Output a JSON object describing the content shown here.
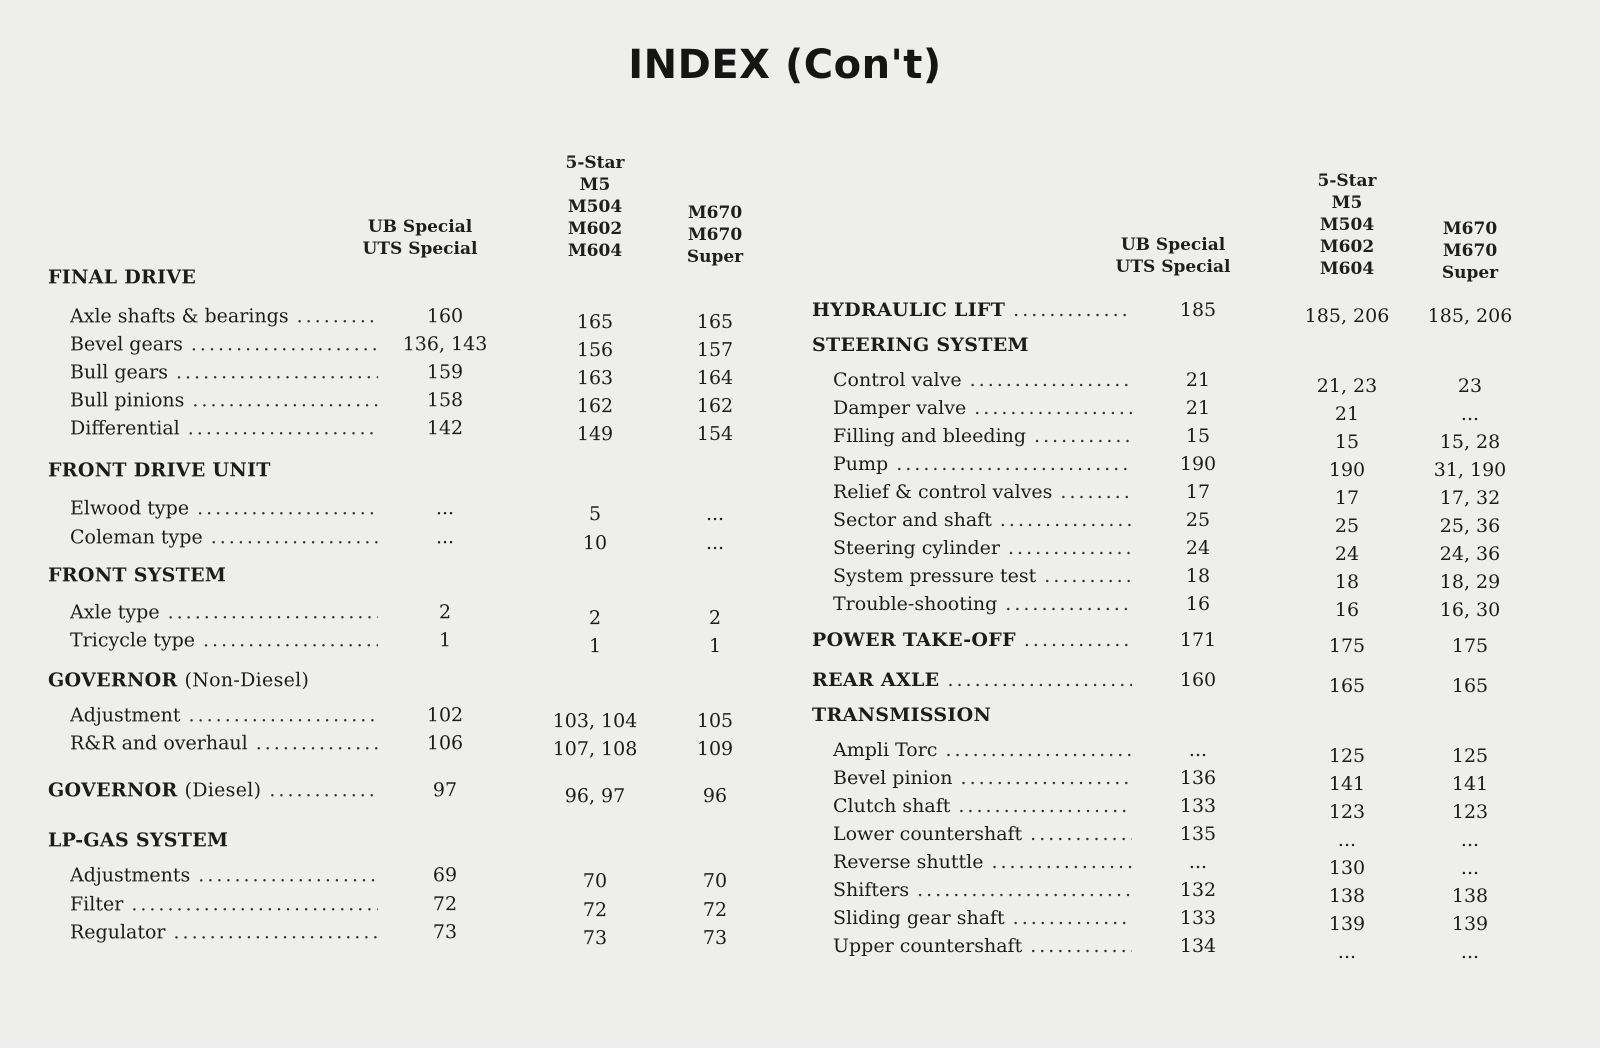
{
  "page_title": "INDEX",
  "page_title_suffix": "(Con't)",
  "columns": [
    [
      "UB Special",
      "UTS Special"
    ],
    [
      "5-Star",
      "M5",
      "M504",
      "M602",
      "M604"
    ],
    [
      "M670",
      "M670",
      "Super"
    ]
  ],
  "left": [
    {
      "type": "section",
      "title": "FINAL DRIVE"
    },
    {
      "type": "item",
      "label": "Axle shafts & bearings",
      "values": [
        "160",
        "165",
        "165"
      ]
    },
    {
      "type": "item",
      "label": "Bevel gears",
      "values": [
        "136, 143",
        "156",
        "157"
      ]
    },
    {
      "type": "item",
      "label": "Bull gears",
      "values": [
        "159",
        "163",
        "164"
      ]
    },
    {
      "type": "item",
      "label": "Bull pinions",
      "values": [
        "158",
        "162",
        "162"
      ]
    },
    {
      "type": "item",
      "label": "Differential",
      "values": [
        "142",
        "149",
        "154"
      ]
    },
    {
      "type": "section",
      "title": "FRONT DRIVE UNIT"
    },
    {
      "type": "item",
      "label": "Elwood type",
      "values": [
        "...",
        "5",
        "..."
      ]
    },
    {
      "type": "item",
      "label": "Coleman type",
      "values": [
        "...",
        "10",
        "..."
      ]
    },
    {
      "type": "section",
      "title": "FRONT SYSTEM"
    },
    {
      "type": "item",
      "label": "Axle type",
      "values": [
        "2",
        "2",
        "2"
      ]
    },
    {
      "type": "item",
      "label": "Tricycle type",
      "values": [
        "1",
        "1",
        "1"
      ]
    },
    {
      "type": "section",
      "title": "GOVERNOR",
      "subtitle": "(Non-Diesel)"
    },
    {
      "type": "item",
      "label": "Adjustment",
      "values": [
        "102",
        "103, 104",
        "105"
      ]
    },
    {
      "type": "item",
      "label": "R&R and overhaul",
      "values": [
        "106",
        "107, 108",
        "109"
      ]
    },
    {
      "type": "section",
      "title": "GOVERNOR",
      "subtitle": "(Diesel)",
      "values": [
        "97",
        "96, 97",
        "96"
      ]
    },
    {
      "type": "section",
      "title": "LP-GAS SYSTEM"
    },
    {
      "type": "item",
      "label": "Adjustments",
      "values": [
        "69",
        "70",
        "70"
      ]
    },
    {
      "type": "item",
      "label": "Filter",
      "values": [
        "72",
        "72",
        "72"
      ]
    },
    {
      "type": "item",
      "label": "Regulator",
      "values": [
        "73",
        "73",
        "73"
      ]
    }
  ],
  "right": [
    {
      "type": "section",
      "title": "HYDRAULIC LIFT",
      "values": [
        "185",
        "185, 206",
        "185, 206"
      ]
    },
    {
      "type": "section",
      "title": "STEERING SYSTEM"
    },
    {
      "type": "item",
      "label": "Control valve",
      "values": [
        "21",
        "21, 23",
        "23"
      ]
    },
    {
      "type": "item",
      "label": "Damper valve",
      "values": [
        "21",
        "21",
        "..."
      ]
    },
    {
      "type": "item",
      "label": "Filling and bleeding",
      "values": [
        "15",
        "15",
        "15, 28"
      ]
    },
    {
      "type": "item",
      "label": "Pump",
      "values": [
        "190",
        "190",
        "31, 190"
      ]
    },
    {
      "type": "item",
      "label": "Relief & control valves",
      "values": [
        "17",
        "17",
        "17, 32"
      ]
    },
    {
      "type": "item",
      "label": "Sector and shaft",
      "values": [
        "25",
        "25",
        "25, 36"
      ]
    },
    {
      "type": "item",
      "label": "Steering cylinder",
      "values": [
        "24",
        "24",
        "24, 36"
      ]
    },
    {
      "type": "item",
      "label": "System pressure test",
      "values": [
        "18",
        "18",
        "18, 29"
      ]
    },
    {
      "type": "item",
      "label": "Trouble-shooting",
      "values": [
        "16",
        "16",
        "16, 30"
      ]
    },
    {
      "type": "section",
      "title": "POWER TAKE-OFF",
      "values": [
        "171",
        "175",
        "175"
      ]
    },
    {
      "type": "section",
      "title": "REAR AXLE",
      "values": [
        "160",
        "165",
        "165"
      ]
    },
    {
      "type": "section",
      "title": "TRANSMISSION"
    },
    {
      "type": "item",
      "label": "Ampli Torc",
      "values": [
        "...",
        "125",
        "125"
      ]
    },
    {
      "type": "item",
      "label": "Bevel pinion",
      "values": [
        "136",
        "141",
        "141"
      ]
    },
    {
      "type": "item",
      "label": "Clutch shaft",
      "values": [
        "133",
        "123",
        "123"
      ]
    },
    {
      "type": "item",
      "label": "Lower countershaft",
      "values": [
        "135",
        "...",
        "..."
      ]
    },
    {
      "type": "item",
      "label": "Reverse shuttle",
      "values": [
        "...",
        "130",
        "..."
      ]
    },
    {
      "type": "item",
      "label": "Shifters",
      "values": [
        "132",
        "138",
        "138"
      ]
    },
    {
      "type": "item",
      "label": "Sliding gear shaft",
      "values": [
        "133",
        "139",
        "139"
      ]
    },
    {
      "type": "item",
      "label": "Upper countershaft",
      "values": [
        "134",
        "...",
        "..."
      ]
    }
  ]
}
